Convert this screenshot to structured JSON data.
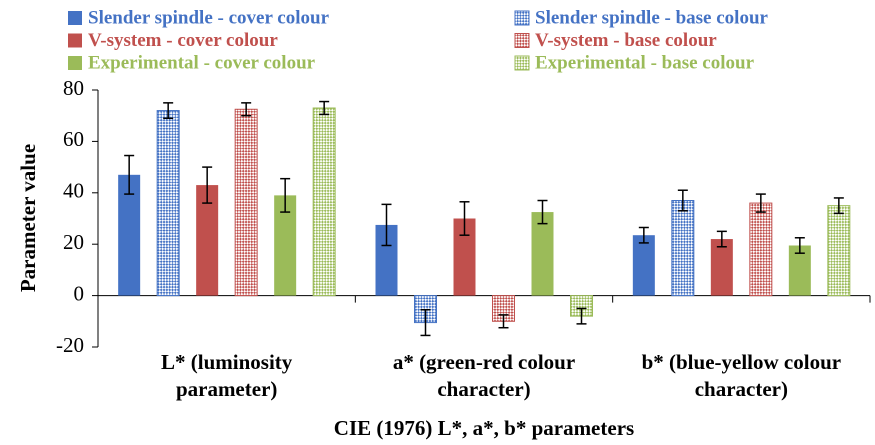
{
  "chart_data": {
    "type": "bar",
    "xlabel": "CIE (1976) L*, a*, b* parameters",
    "ylabel": "Parameter value",
    "categories": [
      [
        "L* (luminosity",
        "parameter)"
      ],
      [
        "a* (green-red colour",
        "character)"
      ],
      [
        "b* (blue-yellow colour",
        "character)"
      ]
    ],
    "series": [
      {
        "name": "Slender spindle - cover colour",
        "color": "#4472c4",
        "hatch": false,
        "values": [
          47,
          27.5,
          23.5
        ],
        "errors": [
          7.5,
          8,
          3
        ]
      },
      {
        "name": "Slender spindle - base colour",
        "color": "#4472c4",
        "hatch": true,
        "values": [
          72,
          -10.5,
          37
        ],
        "errors": [
          3,
          5,
          4
        ]
      },
      {
        "name": "V-system - cover colour",
        "color": "#c0504d",
        "hatch": false,
        "values": [
          43,
          30,
          22
        ],
        "errors": [
          7,
          6.5,
          3
        ]
      },
      {
        "name": "V-system - base colour",
        "color": "#c0504d",
        "hatch": true,
        "values": [
          72.5,
          -10,
          36
        ],
        "errors": [
          2.5,
          2.5,
          3.5
        ]
      },
      {
        "name": "Experimental - cover colour",
        "color": "#9bbb59",
        "hatch": false,
        "values": [
          39,
          32.5,
          19.5
        ],
        "errors": [
          6.5,
          4.5,
          3
        ]
      },
      {
        "name": "Experimental - base colour",
        "color": "#9bbb59",
        "hatch": true,
        "values": [
          73,
          -8,
          35
        ],
        "errors": [
          2.5,
          3,
          3
        ]
      }
    ],
    "ylim": [
      -20,
      80
    ],
    "yticks": [
      -20,
      0,
      20,
      40,
      60,
      80
    ]
  }
}
